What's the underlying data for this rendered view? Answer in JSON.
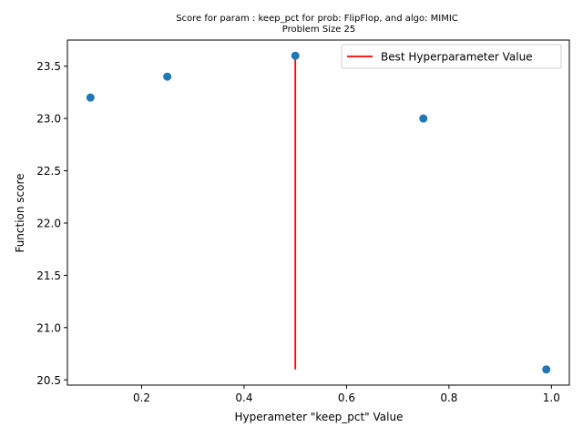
{
  "chart_data": {
    "type": "scatter",
    "title": "Score for param : keep_pct for prob: FlipFlop, and algo: MIMIC",
    "subtitle": "Problem Size 25",
    "xlabel": "Hyperameter \"keep_pct\" Value",
    "ylabel": "Function score",
    "xlim": [
      0.055,
      1.035
    ],
    "ylim": [
      20.45,
      23.75
    ],
    "xticks": [
      0.2,
      0.4,
      0.6,
      0.8,
      1.0
    ],
    "xtick_labels": [
      "0.2",
      "0.4",
      "0.6",
      "0.8",
      "1.0"
    ],
    "yticks": [
      20.5,
      21.0,
      21.5,
      22.0,
      22.5,
      23.0,
      23.5
    ],
    "ytick_labels": [
      "20.5",
      "21.0",
      "21.5",
      "22.0",
      "22.5",
      "23.0",
      "23.5"
    ],
    "grid": false,
    "series": [
      {
        "x": [
          0.1,
          0.25,
          0.5,
          0.75,
          0.99
        ],
        "y": [
          23.2,
          23.4,
          23.6,
          23.0,
          20.6
        ],
        "color": "#1f77b4"
      }
    ],
    "best_line": {
      "name": "Best Hyperparameter Value",
      "x": 0.5,
      "y_from": 20.6,
      "y_to": 23.6,
      "color": "#ff0000"
    },
    "legend": {
      "placement": "upper right",
      "entries": [
        "Best Hyperparameter Value"
      ]
    }
  }
}
